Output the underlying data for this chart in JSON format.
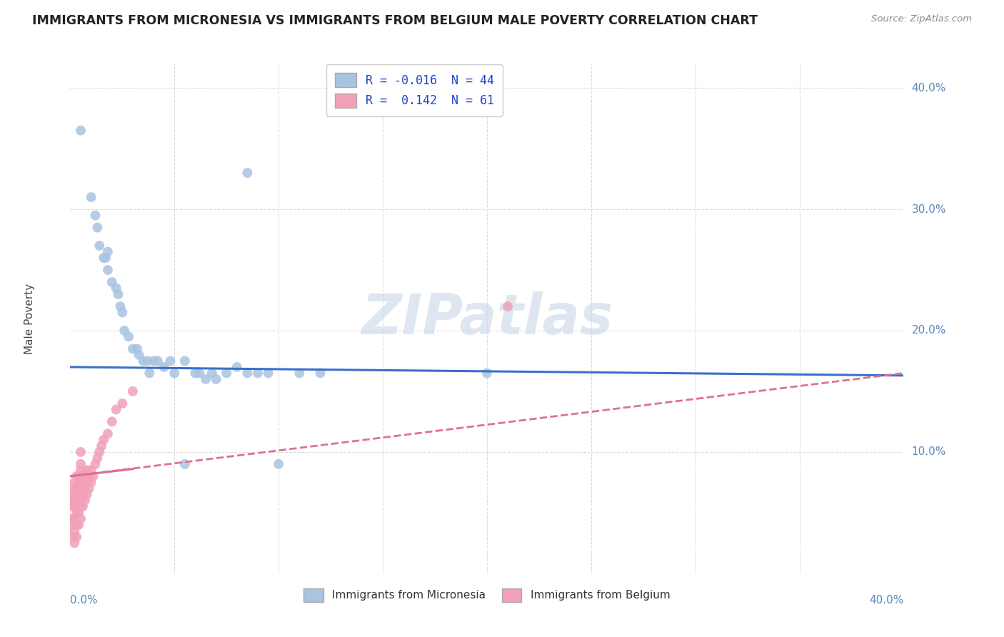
{
  "title": "IMMIGRANTS FROM MICRONESIA VS IMMIGRANTS FROM BELGIUM MALE POVERTY CORRELATION CHART",
  "source": "Source: ZipAtlas.com",
  "ylabel": "Male Poverty",
  "xlim": [
    0.0,
    0.4
  ],
  "ylim": [
    0.0,
    0.42
  ],
  "color_micronesia": "#a8c4e0",
  "color_belgium": "#f2a0b8",
  "color_mic_line": "#3a6fcc",
  "color_bel_line": "#e07090",
  "color_axis_pct": "#5588bb",
  "color_grid": "#dddddd",
  "color_title": "#222222",
  "color_source": "#888888",
  "color_legend_text": "#2244cc",
  "watermark_text": "ZIPatlas",
  "legend_r1": "R = -0.016  N = 44",
  "legend_r2": "R =  0.142  N = 61",
  "mic_trend_x": [
    0.0,
    0.4
  ],
  "mic_trend_y": [
    0.17,
    0.163
  ],
  "bel_trend_x": [
    0.0,
    0.4
  ],
  "bel_trend_y": [
    0.08,
    0.165
  ],
  "micronesia_x": [
    0.005,
    0.01,
    0.012,
    0.013,
    0.014,
    0.016,
    0.017,
    0.018,
    0.018,
    0.02,
    0.022,
    0.023,
    0.024,
    0.025,
    0.026,
    0.028,
    0.03,
    0.032,
    0.033,
    0.035,
    0.037,
    0.04,
    0.042,
    0.045,
    0.048,
    0.05,
    0.055,
    0.06,
    0.062,
    0.065,
    0.068,
    0.07,
    0.075,
    0.08,
    0.085,
    0.09,
    0.095,
    0.1,
    0.11,
    0.12,
    0.2,
    0.085,
    0.038,
    0.055
  ],
  "micronesia_y": [
    0.365,
    0.31,
    0.295,
    0.285,
    0.27,
    0.26,
    0.26,
    0.25,
    0.265,
    0.24,
    0.235,
    0.23,
    0.22,
    0.215,
    0.2,
    0.195,
    0.185,
    0.185,
    0.18,
    0.175,
    0.175,
    0.175,
    0.175,
    0.17,
    0.175,
    0.165,
    0.175,
    0.165,
    0.165,
    0.16,
    0.165,
    0.16,
    0.165,
    0.17,
    0.165,
    0.165,
    0.165,
    0.09,
    0.165,
    0.165,
    0.165,
    0.33,
    0.165,
    0.09
  ],
  "belgium_x": [
    0.001,
    0.001,
    0.001,
    0.001,
    0.001,
    0.001,
    0.001,
    0.002,
    0.002,
    0.002,
    0.002,
    0.002,
    0.002,
    0.002,
    0.003,
    0.003,
    0.003,
    0.003,
    0.003,
    0.003,
    0.003,
    0.003,
    0.004,
    0.004,
    0.004,
    0.004,
    0.004,
    0.005,
    0.005,
    0.005,
    0.005,
    0.005,
    0.005,
    0.005,
    0.005,
    0.005,
    0.006,
    0.006,
    0.006,
    0.007,
    0.007,
    0.007,
    0.008,
    0.008,
    0.008,
    0.009,
    0.009,
    0.01,
    0.01,
    0.011,
    0.012,
    0.013,
    0.014,
    0.015,
    0.016,
    0.018,
    0.02,
    0.022,
    0.025,
    0.03,
    0.21
  ],
  "belgium_y": [
    0.03,
    0.04,
    0.045,
    0.055,
    0.06,
    0.065,
    0.07,
    0.025,
    0.035,
    0.045,
    0.055,
    0.06,
    0.065,
    0.075,
    0.03,
    0.04,
    0.05,
    0.055,
    0.06,
    0.065,
    0.07,
    0.08,
    0.04,
    0.05,
    0.06,
    0.07,
    0.075,
    0.045,
    0.055,
    0.06,
    0.065,
    0.07,
    0.08,
    0.085,
    0.09,
    0.1,
    0.055,
    0.065,
    0.075,
    0.06,
    0.07,
    0.08,
    0.065,
    0.075,
    0.085,
    0.07,
    0.08,
    0.075,
    0.085,
    0.08,
    0.09,
    0.095,
    0.1,
    0.105,
    0.11,
    0.115,
    0.125,
    0.135,
    0.14,
    0.15,
    0.22
  ]
}
